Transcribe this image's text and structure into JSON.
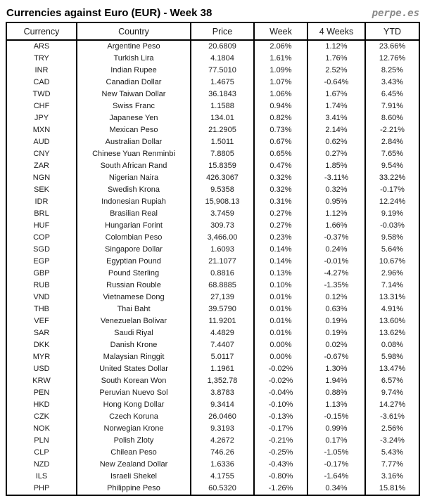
{
  "header": {
    "title": "Currencies against Euro (EUR) - Week 38",
    "logo": "perpe.es"
  },
  "colors": {
    "positive": "#3ea152",
    "negative": "#ff4455",
    "border": "#000000",
    "logo_gray": "#8a8a8a"
  },
  "chart_data": {
    "type": "table",
    "title": "Currencies against Euro (EUR) - Week 38",
    "columns": [
      "Currency",
      "Country",
      "Price",
      "Week",
      "4 Weeks",
      "YTD"
    ],
    "rows": [
      {
        "code": "ARS",
        "country": "Argentine Peso",
        "price": "20.6809",
        "week": {
          "v": "2.06%",
          "c": "g"
        },
        "weeks4": {
          "v": "1.12%",
          "c": "g"
        },
        "ytd": {
          "v": "23.66%",
          "c": "g"
        }
      },
      {
        "code": "TRY",
        "country": "Turkish Lira",
        "price": "4.1804",
        "week": {
          "v": "1.61%",
          "c": "g"
        },
        "weeks4": {
          "v": "1.76%",
          "c": "g"
        },
        "ytd": {
          "v": "12.76%",
          "c": "g"
        }
      },
      {
        "code": "INR",
        "country": "Indian Rupee",
        "price": "77.5010",
        "week": {
          "v": "1.09%",
          "c": "g"
        },
        "weeks4": {
          "v": "2.52%",
          "c": "g"
        },
        "ytd": {
          "v": "8.25%",
          "c": "g"
        }
      },
      {
        "code": "CAD",
        "country": "Canadian Dollar",
        "price": "1.4675",
        "week": {
          "v": "1.07%",
          "c": "g"
        },
        "weeks4": {
          "v": "-0.64%",
          "c": "r"
        },
        "ytd": {
          "v": "3.43%",
          "c": "g"
        }
      },
      {
        "code": "TWD",
        "country": "New Taiwan Dollar",
        "price": "36.1843",
        "week": {
          "v": "1.06%",
          "c": "g"
        },
        "weeks4": {
          "v": "1.67%",
          "c": "g"
        },
        "ytd": {
          "v": "6.45%",
          "c": "g"
        }
      },
      {
        "code": "CHF",
        "country": "Swiss Franc",
        "price": "1.1588",
        "week": {
          "v": "0.94%",
          "c": "g"
        },
        "weeks4": {
          "v": "1.74%",
          "c": "g"
        },
        "ytd": {
          "v": "7.91%",
          "c": "g"
        }
      },
      {
        "code": "JPY",
        "country": "Japanese Yen",
        "price": "134.01",
        "week": {
          "v": "0.82%",
          "c": "g"
        },
        "weeks4": {
          "v": "3.41%",
          "c": "g"
        },
        "ytd": {
          "v": "8.60%",
          "c": "g"
        }
      },
      {
        "code": "MXN",
        "country": "Mexican Peso",
        "price": "21.2905",
        "week": {
          "v": "0.73%",
          "c": "g"
        },
        "weeks4": {
          "v": "2.14%",
          "c": "g"
        },
        "ytd": {
          "v": "-2.21%",
          "c": "r"
        }
      },
      {
        "code": "AUD",
        "country": "Australian Dollar",
        "price": "1.5011",
        "week": {
          "v": "0.67%",
          "c": "g"
        },
        "weeks4": {
          "v": "0.62%",
          "c": "g"
        },
        "ytd": {
          "v": "2.84%",
          "c": "g"
        }
      },
      {
        "code": "CNY",
        "country": "Chinese Yuan Renminbi",
        "price": "7.8805",
        "week": {
          "v": "0.65%",
          "c": "g"
        },
        "weeks4": {
          "v": "0.27%",
          "c": "g"
        },
        "ytd": {
          "v": "7.65%",
          "c": "g"
        }
      },
      {
        "code": "ZAR",
        "country": "South African Rand",
        "price": "15.8359",
        "week": {
          "v": "0.47%",
          "c": "g"
        },
        "weeks4": {
          "v": "1.85%",
          "c": "g"
        },
        "ytd": {
          "v": "9.54%",
          "c": "g"
        }
      },
      {
        "code": "NGN",
        "country": "Nigerian Naira",
        "price": "426.3067",
        "week": {
          "v": "0.32%",
          "c": "g"
        },
        "weeks4": {
          "v": "-3.11%",
          "c": "r"
        },
        "ytd": {
          "v": "33.22%",
          "c": "g"
        }
      },
      {
        "code": "SEK",
        "country": "Swedish Krona",
        "price": "9.5358",
        "week": {
          "v": "0.32%",
          "c": "g"
        },
        "weeks4": {
          "v": "0.32%",
          "c": "g"
        },
        "ytd": {
          "v": "-0.17%",
          "c": "r"
        }
      },
      {
        "code": "IDR",
        "country": "Indonesian Rupiah",
        "price": "15,908.13",
        "week": {
          "v": "0.31%",
          "c": "g"
        },
        "weeks4": {
          "v": "0.95%",
          "c": "g"
        },
        "ytd": {
          "v": "12.24%",
          "c": "g"
        }
      },
      {
        "code": "BRL",
        "country": "Brasilian Real",
        "price": "3.7459",
        "week": {
          "v": "0.27%",
          "c": "g"
        },
        "weeks4": {
          "v": "1.12%",
          "c": "g"
        },
        "ytd": {
          "v": "9.19%",
          "c": "g"
        }
      },
      {
        "code": "HUF",
        "country": "Hungarian Forint",
        "price": "309.73",
        "week": {
          "v": "0.27%",
          "c": "g"
        },
        "weeks4": {
          "v": "1.66%",
          "c": "g"
        },
        "ytd": {
          "v": "-0.03%",
          "c": "r"
        }
      },
      {
        "code": "COP",
        "country": "Colombian Peso",
        "price": "3,466.00",
        "week": {
          "v": "0.23%",
          "c": "g"
        },
        "weeks4": {
          "v": "-0.37%",
          "c": "r"
        },
        "ytd": {
          "v": "9.58%",
          "c": "g"
        }
      },
      {
        "code": "SGD",
        "country": "Singapore Dollar",
        "price": "1.6093",
        "week": {
          "v": "0.14%",
          "c": "g"
        },
        "weeks4": {
          "v": "0.24%",
          "c": "g"
        },
        "ytd": {
          "v": "5.64%",
          "c": "g"
        }
      },
      {
        "code": "EGP",
        "country": "Egyptian Pound",
        "price": "21.1077",
        "week": {
          "v": "0.14%",
          "c": "g"
        },
        "weeks4": {
          "v": "-0.01%",
          "c": "r"
        },
        "ytd": {
          "v": "10.67%",
          "c": "g"
        }
      },
      {
        "code": "GBP",
        "country": "Pound Sterling",
        "price": "0.8816",
        "week": {
          "v": "0.13%",
          "c": "g"
        },
        "weeks4": {
          "v": "-4.27%",
          "c": "r"
        },
        "ytd": {
          "v": "2.96%",
          "c": "g"
        }
      },
      {
        "code": "RUB",
        "country": "Russian Rouble",
        "price": "68.8885",
        "week": {
          "v": "0.10%",
          "c": "g"
        },
        "weeks4": {
          "v": "-1.35%",
          "c": "r"
        },
        "ytd": {
          "v": "7.14%",
          "c": "g"
        }
      },
      {
        "code": "VND",
        "country": "Vietnamese Dong",
        "price": "27,139",
        "week": {
          "v": "0.01%",
          "c": "g"
        },
        "weeks4": {
          "v": "0.12%",
          "c": "g"
        },
        "ytd": {
          "v": "13.31%",
          "c": "g"
        }
      },
      {
        "code": "THB",
        "country": "Thai Baht",
        "price": "39.5790",
        "week": {
          "v": "0.01%",
          "c": "g"
        },
        "weeks4": {
          "v": "0.63%",
          "c": "g"
        },
        "ytd": {
          "v": "4.91%",
          "c": "g"
        }
      },
      {
        "code": "VEF",
        "country": "Venezuelan Bolivar",
        "price": "11.9201",
        "week": {
          "v": "0.01%",
          "c": "g"
        },
        "weeks4": {
          "v": "0.19%",
          "c": "g"
        },
        "ytd": {
          "v": "13.60%",
          "c": "g"
        }
      },
      {
        "code": "SAR",
        "country": "Saudi Riyal",
        "price": "4.4829",
        "week": {
          "v": "0.01%",
          "c": "g"
        },
        "weeks4": {
          "v": "0.19%",
          "c": "g"
        },
        "ytd": {
          "v": "13.62%",
          "c": "g"
        }
      },
      {
        "code": "DKK",
        "country": "Danish Krone",
        "price": "7.4407",
        "week": {
          "v": "0.00%",
          "c": "r"
        },
        "weeks4": {
          "v": "0.02%",
          "c": "g"
        },
        "ytd": {
          "v": "0.08%",
          "c": "g"
        }
      },
      {
        "code": "MYR",
        "country": "Malaysian Ringgit",
        "price": "5.0117",
        "week": {
          "v": "0.00%",
          "c": "r"
        },
        "weeks4": {
          "v": "-0.67%",
          "c": "r"
        },
        "ytd": {
          "v": "5.98%",
          "c": "g"
        }
      },
      {
        "code": "USD",
        "country": "United States Dollar",
        "price": "1.1961",
        "week": {
          "v": "-0.02%",
          "c": "r"
        },
        "weeks4": {
          "v": "1.30%",
          "c": "g"
        },
        "ytd": {
          "v": "13.47%",
          "c": "g"
        }
      },
      {
        "code": "KRW",
        "country": "South Korean Won",
        "price": "1,352.78",
        "week": {
          "v": "-0.02%",
          "c": "r"
        },
        "weeks4": {
          "v": "1.94%",
          "c": "g"
        },
        "ytd": {
          "v": "6.57%",
          "c": "g"
        }
      },
      {
        "code": "PEN",
        "country": "Peruvian Nuevo Sol",
        "price": "3.8783",
        "week": {
          "v": "-0.04%",
          "c": "r"
        },
        "weeks4": {
          "v": "0.88%",
          "c": "g"
        },
        "ytd": {
          "v": "9.74%",
          "c": "g"
        }
      },
      {
        "code": "HKD",
        "country": "Hong Kong Dollar",
        "price": "9.3414",
        "week": {
          "v": "-0.10%",
          "c": "r"
        },
        "weeks4": {
          "v": "1.13%",
          "c": "g"
        },
        "ytd": {
          "v": "14.27%",
          "c": "g"
        }
      },
      {
        "code": "CZK",
        "country": "Czech Koruna",
        "price": "26.0460",
        "week": {
          "v": "-0.13%",
          "c": "r"
        },
        "weeks4": {
          "v": "-0.15%",
          "c": "r"
        },
        "ytd": {
          "v": "-3.61%",
          "c": "r"
        }
      },
      {
        "code": "NOK",
        "country": "Norwegian Krone",
        "price": "9.3193",
        "week": {
          "v": "-0.17%",
          "c": "r"
        },
        "weeks4": {
          "v": "0.99%",
          "c": "g"
        },
        "ytd": {
          "v": "2.56%",
          "c": "g"
        }
      },
      {
        "code": "PLN",
        "country": "Polish Zloty",
        "price": "4.2672",
        "week": {
          "v": "-0.21%",
          "c": "r"
        },
        "weeks4": {
          "v": "0.17%",
          "c": "g"
        },
        "ytd": {
          "v": "-3.24%",
          "c": "r"
        }
      },
      {
        "code": "CLP",
        "country": "Chilean Peso",
        "price": "746.26",
        "week": {
          "v": "-0.25%",
          "c": "r"
        },
        "weeks4": {
          "v": "-1.05%",
          "c": "r"
        },
        "ytd": {
          "v": "5.43%",
          "c": "g"
        }
      },
      {
        "code": "NZD",
        "country": "New Zealand Dollar",
        "price": "1.6336",
        "week": {
          "v": "-0.43%",
          "c": "r"
        },
        "weeks4": {
          "v": "-0.17%",
          "c": "r"
        },
        "ytd": {
          "v": "7.77%",
          "c": "g"
        }
      },
      {
        "code": "ILS",
        "country": "Israeli Shekel",
        "price": "4.1755",
        "week": {
          "v": "-0.80%",
          "c": "r"
        },
        "weeks4": {
          "v": "-1.64%",
          "c": "r"
        },
        "ytd": {
          "v": "3.16%",
          "c": "g"
        }
      },
      {
        "code": "PHP",
        "country": "Philippine Peso",
        "price": "60.5320",
        "week": {
          "v": "-1.26%",
          "c": "r"
        },
        "weeks4": {
          "v": "0.34%",
          "c": "g"
        },
        "ytd": {
          "v": "15.81%",
          "c": "g"
        }
      }
    ]
  }
}
